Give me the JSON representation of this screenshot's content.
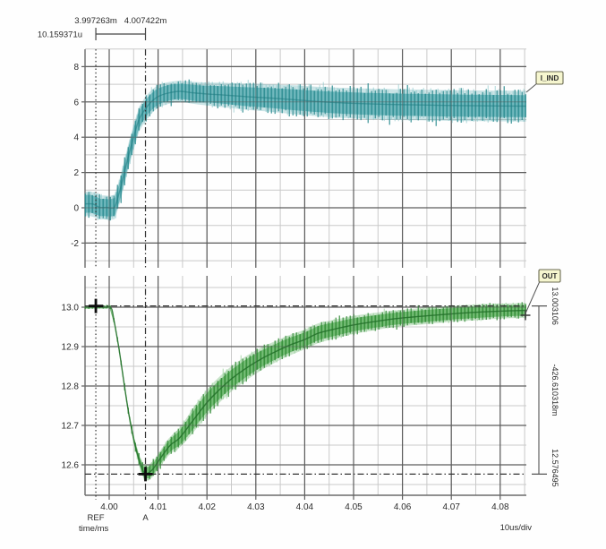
{
  "colors": {
    "background": "#fefefe",
    "grid_major": "#5d5d5d",
    "grid_minor": "#c9c9c9",
    "axis": "#6b6b6b",
    "cursor": "#333333",
    "text": "#2b2b2b",
    "badge_fill": "#f6f6cf",
    "badge_border": "#6b6b52",
    "teal_dark": "#28898e",
    "teal_light": "#4fa7ab",
    "teal_center": "#1d7a7f",
    "teal_edge": "#85c5c8",
    "green_dark": "#2e8833",
    "green_light": "#54aa55",
    "green_center": "#23702a",
    "green_edge": "#88ca8b",
    "cross": "#0d0d0d"
  },
  "top_ruler": {
    "ref_time_label": "3.997263m",
    "a_time_label": "4.007422m",
    "delta_time_label": "10.159371u"
  },
  "cursor_readouts": {
    "ref_value": "13.003106",
    "delta_value": "-426.610318m",
    "a_value": "12.576495"
  },
  "cursors": {
    "ref_t": 3.997263,
    "a_t": 4.007422,
    "ref_v": 13.003106,
    "a_v": 12.576495
  },
  "xaxis": {
    "tick_labels": [
      "4.00",
      "4.01",
      "4.02",
      "4.03",
      "4.04",
      "4.05",
      "4.06",
      "4.07",
      "4.08"
    ],
    "tick_values": [
      4.0,
      4.01,
      4.02,
      4.03,
      4.04,
      4.05,
      4.06,
      4.07,
      4.08
    ],
    "ref_label": "REF",
    "a_label": "A",
    "axis_label": "time/ms",
    "per_div_label": "10us/div",
    "xlim": [
      3.99506,
      4.08535
    ]
  },
  "chart_data": [
    {
      "type": "area",
      "name": "I_IND",
      "badge_label": "I_IND",
      "ytick_labels": [
        "8",
        "6",
        "4",
        "2",
        "0",
        "-2"
      ],
      "ytick_values": [
        8,
        6,
        4,
        2,
        0,
        -2
      ],
      "yminor_values": [
        9,
        7,
        5,
        3,
        1,
        -1,
        -3
      ],
      "ylim": [
        -3.4,
        9.0
      ],
      "series_points": [
        [
          3.9951,
          0.22,
          0.7
        ],
        [
          3.9966,
          0.22,
          0.7
        ],
        [
          3.9973,
          0.12,
          0.7
        ],
        [
          3.9981,
          0.02,
          0.68
        ],
        [
          3.9995,
          0.02,
          0.68
        ],
        [
          4.0006,
          -0.02,
          0.68
        ],
        [
          4.0012,
          0.1,
          0.7
        ],
        [
          4.0022,
          1.0,
          0.72
        ],
        [
          4.0031,
          2.0,
          0.72
        ],
        [
          4.004,
          3.0,
          0.72
        ],
        [
          4.005,
          4.0,
          0.72
        ],
        [
          4.0061,
          5.0,
          0.7
        ],
        [
          4.0074,
          5.6,
          0.68
        ],
        [
          4.0086,
          6.0,
          0.66
        ],
        [
          4.01,
          6.3,
          0.64
        ],
        [
          4.012,
          6.5,
          0.62
        ],
        [
          4.0145,
          6.6,
          0.6
        ],
        [
          4.017,
          6.52,
          0.62
        ],
        [
          4.02,
          6.45,
          0.65
        ],
        [
          4.024,
          6.38,
          0.7
        ],
        [
          4.028,
          6.3,
          0.74
        ],
        [
          4.033,
          6.22,
          0.78
        ],
        [
          4.038,
          6.12,
          0.82
        ],
        [
          4.044,
          6.0,
          0.84
        ],
        [
          4.05,
          5.92,
          0.86
        ],
        [
          4.057,
          5.86,
          0.87
        ],
        [
          4.065,
          5.82,
          0.87
        ],
        [
          4.072,
          5.79,
          0.87
        ],
        [
          4.08,
          5.77,
          0.87
        ],
        [
          4.0853,
          5.76,
          0.87
        ]
      ]
    },
    {
      "type": "area",
      "name": "OUT",
      "badge_label": "OUT",
      "ytick_labels": [
        "13.0",
        "12.9",
        "12.8",
        "12.7",
        "12.6"
      ],
      "ytick_values": [
        13.0,
        12.9,
        12.8,
        12.7,
        12.6
      ],
      "yminor_values": [
        13.05,
        12.95,
        12.85,
        12.75,
        12.65,
        12.55
      ],
      "ylim": [
        12.52,
        13.08
      ],
      "series_points": [
        [
          3.9951,
          13.0,
          0.004
        ],
        [
          3.999,
          13.0,
          0.004
        ],
        [
          4.0004,
          12.998,
          0.005
        ],
        [
          4.001,
          12.965,
          0.006
        ],
        [
          4.002,
          12.895,
          0.007
        ],
        [
          4.003,
          12.81,
          0.008
        ],
        [
          4.004,
          12.73,
          0.009
        ],
        [
          4.005,
          12.665,
          0.011
        ],
        [
          4.006,
          12.617,
          0.014
        ],
        [
          4.0068,
          12.588,
          0.017
        ],
        [
          4.0074,
          12.577,
          0.02
        ],
        [
          4.0082,
          12.581,
          0.02
        ],
        [
          4.009,
          12.59,
          0.02
        ],
        [
          4.0105,
          12.617,
          0.02
        ],
        [
          4.0125,
          12.65,
          0.022
        ],
        [
          4.0143,
          12.667,
          0.025
        ],
        [
          4.017,
          12.71,
          0.031
        ],
        [
          4.02,
          12.758,
          0.033
        ],
        [
          4.0225,
          12.79,
          0.033
        ],
        [
          4.025,
          12.818,
          0.032
        ],
        [
          4.028,
          12.845,
          0.031
        ],
        [
          4.031,
          12.868,
          0.029
        ],
        [
          4.034,
          12.887,
          0.027
        ],
        [
          4.037,
          12.904,
          0.026
        ],
        [
          4.04,
          12.918,
          0.025
        ],
        [
          4.0428,
          12.934,
          0.025
        ],
        [
          4.046,
          12.944,
          0.024
        ],
        [
          4.05,
          12.955,
          0.023
        ],
        [
          4.054,
          12.963,
          0.022
        ],
        [
          4.058,
          12.97,
          0.021
        ],
        [
          4.062,
          12.975,
          0.021
        ],
        [
          4.066,
          12.979,
          0.021
        ],
        [
          4.07,
          12.983,
          0.02
        ],
        [
          4.075,
          12.987,
          0.02
        ],
        [
          4.08,
          12.99,
          0.019
        ],
        [
          4.0853,
          12.992,
          0.019
        ]
      ]
    }
  ]
}
